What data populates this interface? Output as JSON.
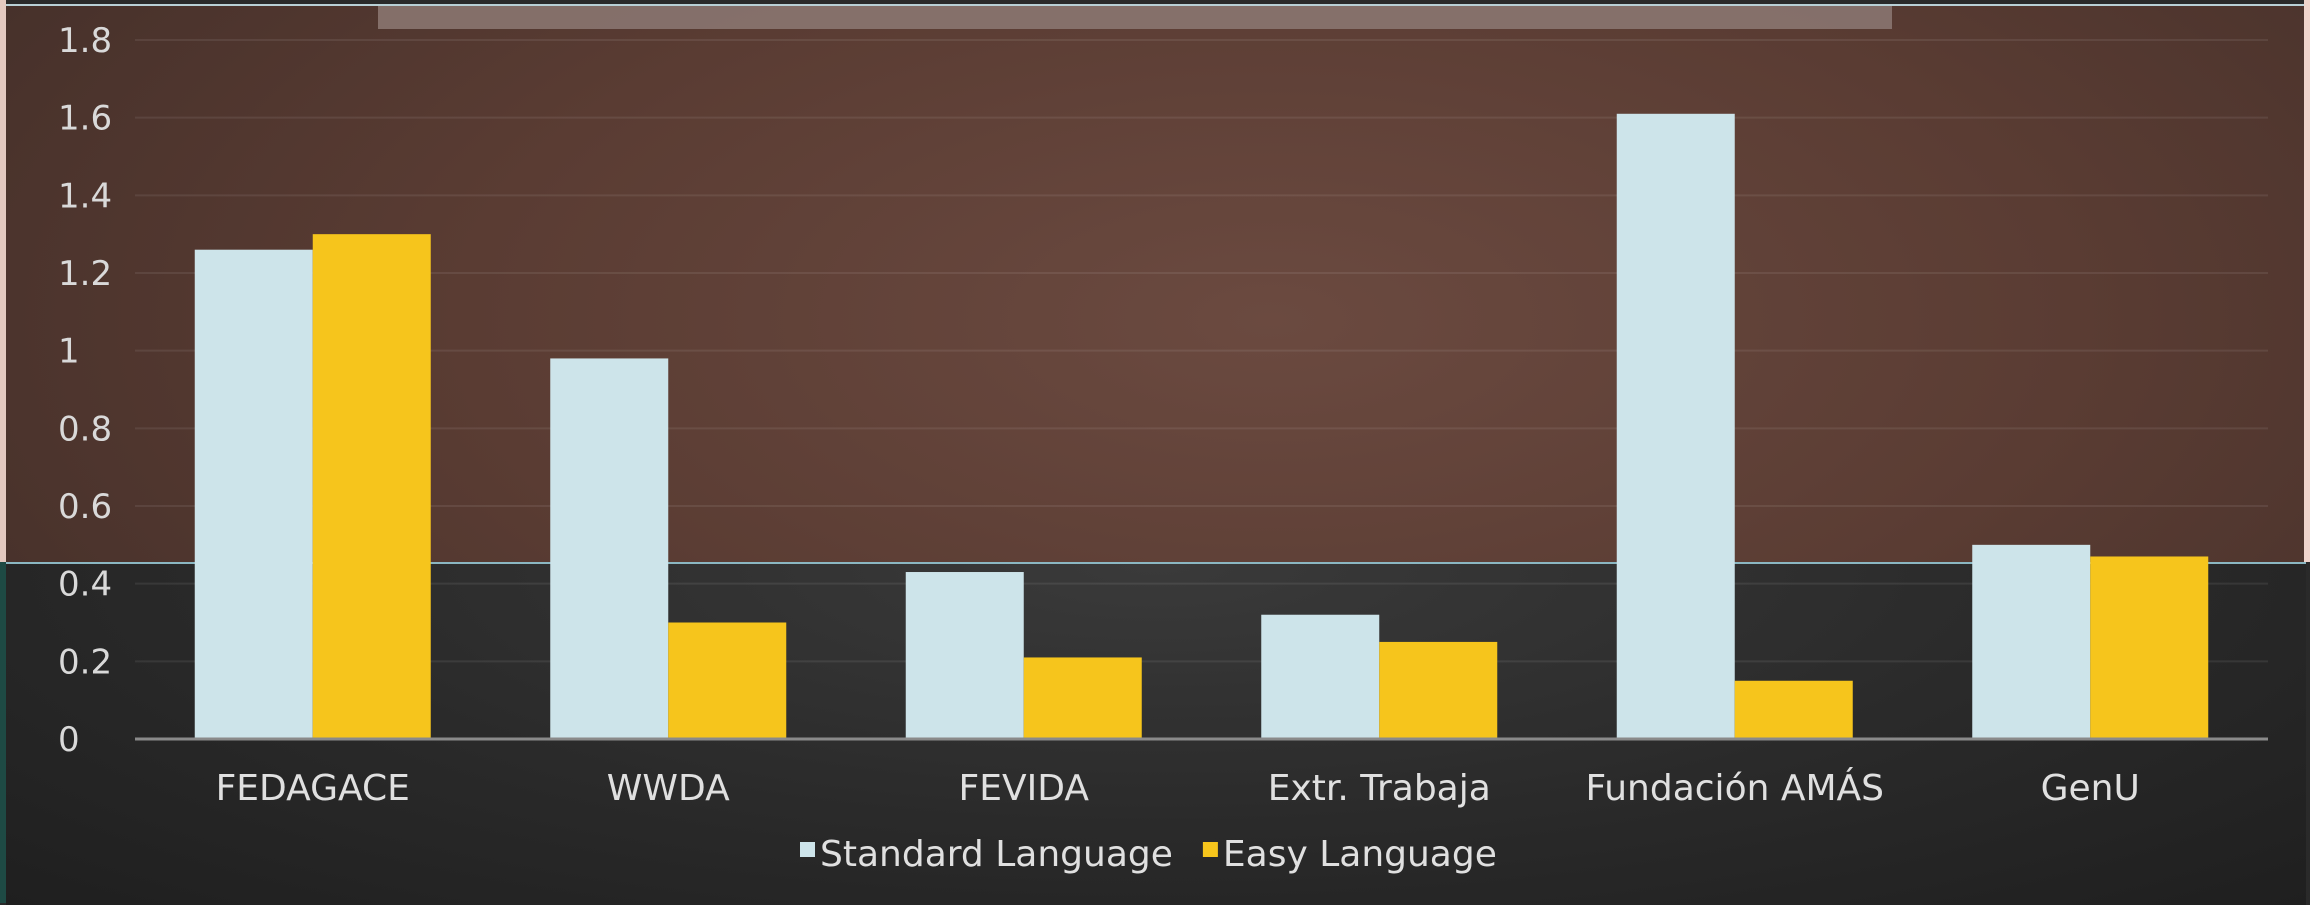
{
  "chart_data": {
    "type": "bar",
    "categories": [
      "FEDAGACE",
      "WWDA",
      "FEVIDA",
      "Extr. Trabaja",
      "Fundación AMÁS",
      "GenU"
    ],
    "series": [
      {
        "name": "Standard Language",
        "values": [
          1.26,
          0.98,
          0.43,
          0.32,
          1.61,
          0.5
        ],
        "color": "#cde4ea"
      },
      {
        "name": "Easy Language",
        "values": [
          1.3,
          0.3,
          0.21,
          0.25,
          0.15,
          0.47
        ],
        "color": "#f6c51c"
      }
    ],
    "ylim": [
      0,
      1.8
    ],
    "yticks": [
      "0",
      "0.2",
      "0.4",
      "0.6",
      "0.8",
      "1",
      "1.2",
      "1.4",
      "1.6",
      "1.8"
    ],
    "ytick_values": [
      0,
      0.2,
      0.4,
      0.6,
      0.8,
      1.0,
      1.2,
      1.4,
      1.6,
      1.8
    ],
    "grid": true,
    "legend_position": "bottom",
    "title": "",
    "xlabel": "",
    "ylabel": ""
  }
}
